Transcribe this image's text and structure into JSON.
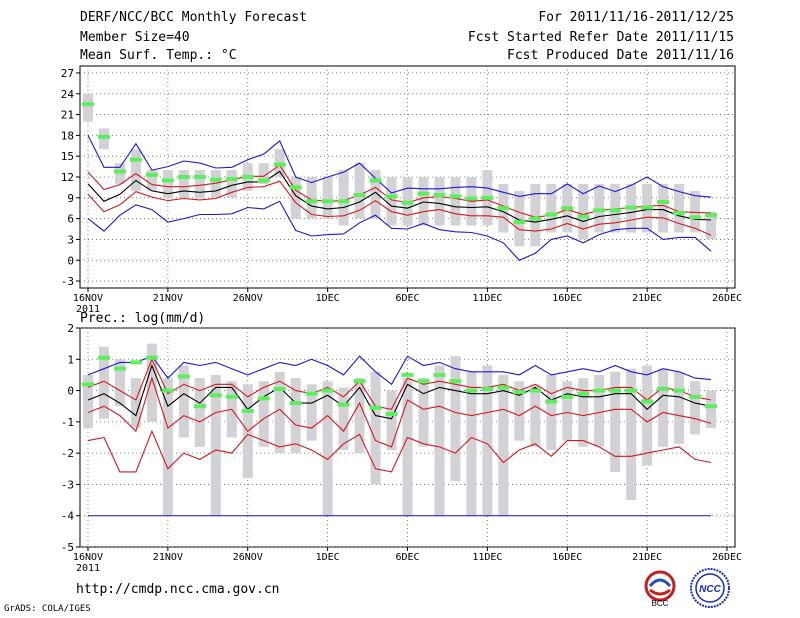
{
  "header": {
    "title": "DERF/NCC/BCC Monthly Forecast",
    "member_size": "Member Size=40",
    "variable": "Mean Surf. Temp.: °C",
    "forecast_period": "For 2011/11/16-2011/12/25",
    "started_refer": "Fcst Started Refer Date 2011/11/15",
    "produced": "Fcst Produced Date 2011/11/16"
  },
  "footer": {
    "url": "http://cmdp.ncc.cma.gov.cn",
    "grads_credit": "GrADS: COLA/IGES",
    "logo_left_text": "BCC",
    "logo_right_text": "NCC"
  },
  "colors": {
    "box": "#d2d2d6",
    "median": "#5cee5c",
    "mean": "#000000",
    "stdev": "#d21a1a",
    "extreme": "#1a1ad2",
    "grid": "#666666"
  },
  "chart_data": [
    {
      "type": "box-ensemble",
      "title": "Mean Surf. Temp.: °C",
      "x_labels": [
        "16NOV",
        "21NOV",
        "26NOV",
        "1DEC",
        "6DEC",
        "11DEC",
        "16DEC",
        "21DEC",
        "26DEC"
      ],
      "x_year_label": "2011",
      "ylim": [
        -4,
        28
      ],
      "yticks": [
        -3,
        0,
        3,
        6,
        9,
        12,
        15,
        18,
        21,
        24,
        27
      ],
      "days": [
        1,
        2,
        3,
        4,
        5,
        6,
        7,
        8,
        9,
        10,
        11,
        12,
        13,
        14,
        15,
        16,
        17,
        18,
        19,
        20,
        21,
        22,
        23,
        24,
        25,
        26,
        27,
        28,
        29,
        30,
        31,
        32,
        33,
        34,
        35,
        36,
        37,
        38,
        39,
        40
      ],
      "box_low": [
        20,
        16,
        11,
        10,
        10,
        9,
        9,
        9,
        9,
        9,
        10,
        11,
        12,
        6,
        6,
        6,
        5,
        6,
        6,
        5,
        5,
        5,
        5,
        5,
        5,
        5,
        4,
        2,
        2,
        4,
        4,
        3,
        4,
        4,
        4,
        4,
        4,
        4,
        4,
        3
      ],
      "box_high": [
        24,
        19,
        14,
        16,
        13,
        13,
        13,
        13,
        13,
        13,
        14,
        14,
        16,
        12,
        12,
        12,
        13,
        14,
        13,
        12,
        12,
        12,
        12,
        12,
        12,
        13,
        11,
        10,
        11,
        11,
        11,
        11,
        11,
        11,
        11,
        11,
        11,
        11,
        10,
        7
      ],
      "median": [
        22.5,
        17.8,
        12.8,
        14.5,
        12.3,
        11.5,
        12,
        12,
        11.6,
        11.7,
        12,
        11.5,
        13.8,
        10.5,
        8.5,
        8.5,
        8.5,
        9.4,
        11.5,
        9.2,
        8.3,
        9.6,
        9.4,
        9.2,
        8.9,
        9,
        7.5,
        5.5,
        6,
        6.6,
        7.5,
        6.3,
        7.2,
        7.2,
        7.6,
        7.6,
        8.4,
        6.8,
        6.2,
        6.5
      ],
      "mean": [
        11,
        8.5,
        9.5,
        11.5,
        10,
        9.6,
        10,
        9.8,
        10,
        10.8,
        11.3,
        11.3,
        12.8,
        9.3,
        7.8,
        7.4,
        7.6,
        8.4,
        9.8,
        7.8,
        7.5,
        8.4,
        8.2,
        7.7,
        7.6,
        7.7,
        7,
        5.8,
        5.5,
        5.9,
        6.4,
        5.6,
        6.3,
        6.6,
        6.9,
        7.3,
        7.3,
        6.4,
        5.9,
        5.8
      ],
      "mean_plus_sd": [
        12.7,
        10.2,
        10.9,
        12.5,
        10.9,
        10.6,
        10.6,
        10.8,
        11.1,
        11.6,
        12.1,
        12.1,
        13.7,
        10.1,
        8.7,
        8.5,
        8.6,
        9.4,
        10.5,
        8.7,
        8.3,
        9,
        9.2,
        8.9,
        8.5,
        8.7,
        7.8,
        6.9,
        6.2,
        6.5,
        7.3,
        6.6,
        7.2,
        7.4,
        7.6,
        7.8,
        7.9,
        7,
        6.9,
        6.8
      ],
      "mean_minus_sd": [
        9.5,
        7,
        8,
        9.9,
        9.1,
        8.6,
        8.9,
        8.7,
        8.9,
        9.8,
        10.5,
        10.6,
        11.4,
        8.3,
        6.6,
        6.3,
        6.4,
        7.2,
        8.6,
        7,
        6.5,
        7,
        7.3,
        6.7,
        6.4,
        6.4,
        6.2,
        4.4,
        4.2,
        4.5,
        5.3,
        4.5,
        5.2,
        5.4,
        5.8,
        6.2,
        6.1,
        5.3,
        4.6,
        3.6
      ],
      "max": [
        18,
        13.4,
        13.4,
        16.8,
        13,
        13.5,
        14.3,
        14,
        13.3,
        13.4,
        14.5,
        15.3,
        17.2,
        12,
        11.2,
        12,
        12.7,
        14,
        11.8,
        9.7,
        10.4,
        10.3,
        10.3,
        10.5,
        10.6,
        10.4,
        9.8,
        9.2,
        9.6,
        9.6,
        11,
        9.6,
        10.7,
        9.9,
        10.8,
        12,
        10.6,
        9.9,
        9.3,
        9.1
      ],
      "min": [
        6,
        4.2,
        6.5,
        8,
        7.3,
        5.5,
        6,
        6.6,
        6.6,
        6.7,
        7.6,
        7.4,
        8.5,
        4.3,
        3.5,
        3.7,
        3.8,
        5.4,
        6.5,
        4.6,
        4.5,
        5.3,
        4.4,
        4.1,
        4,
        3.5,
        2.5,
        0,
        1,
        3,
        3.5,
        2.5,
        3.7,
        4.4,
        4.6,
        4.6,
        3,
        3.3,
        3.3,
        1.3
      ]
    },
    {
      "type": "box-ensemble",
      "title": "Prec.: log(mm/d)",
      "x_labels": [
        "16NOV",
        "21NOV",
        "26NOV",
        "1DEC",
        "6DEC",
        "11DEC",
        "16DEC",
        "21DEC",
        "26DEC"
      ],
      "x_year_label": "2011",
      "ylim": [
        -5,
        2
      ],
      "yticks": [
        -5,
        -4,
        -3,
        -2,
        -1,
        0,
        1,
        2
      ],
      "box_low": [
        -1.2,
        -0.9,
        -0.5,
        -1.2,
        -1.0,
        -4,
        -1.5,
        -1.8,
        -4,
        -1.5,
        -2.8,
        -1.8,
        -2,
        -2,
        -1.6,
        -4,
        -1.9,
        -2,
        -3,
        -1.9,
        -4,
        -1.8,
        -4,
        -2.9,
        -4,
        -4,
        -4,
        -1.6,
        -1.8,
        -1.9,
        -1.6,
        -1.8,
        -1.8,
        -2.6,
        -3.5,
        -2.4,
        -1.8,
        -1.7,
        -1.4,
        -1.2
      ],
      "box_high": [
        0.5,
        1.4,
        1,
        0.4,
        1.5,
        0.4,
        0.8,
        0.4,
        0.5,
        0.3,
        0.2,
        0.3,
        0.6,
        0.4,
        0.2,
        0.3,
        0.1,
        0.4,
        0.6,
        0,
        0.4,
        0.4,
        0.8,
        1.1,
        0.6,
        0.8,
        0.5,
        0.3,
        0.2,
        0.5,
        0.3,
        0.4,
        0.5,
        0.6,
        0.7,
        0.8,
        0.7,
        0.6,
        0.3,
        0
      ],
      "median": [
        0.2,
        1.05,
        0.7,
        0.9,
        1.05,
        0,
        0.45,
        -0.5,
        -0.15,
        -0.2,
        -0.65,
        -0.25,
        0.05,
        -0.4,
        -0.1,
        0,
        -0.45,
        0.3,
        -0.55,
        -0.75,
        0.5,
        0.3,
        0.5,
        0.3,
        0,
        0.05,
        0.1,
        -0.05,
        0,
        -0.35,
        -0.2,
        -0.1,
        0,
        0,
        0,
        -0.35,
        0.05,
        0,
        -0.2,
        -0.5
      ],
      "mean": [
        -0.3,
        -0.1,
        -0.4,
        -0.8,
        0.8,
        -0.5,
        -0.1,
        -0.4,
        0.1,
        0.1,
        -0.6,
        -0.2,
        0.1,
        -0.4,
        -0.4,
        -0.15,
        -0.5,
        0.1,
        -0.8,
        -0.9,
        0.2,
        -0.1,
        0.1,
        0,
        -0.1,
        -0.1,
        0,
        -0.15,
        0.1,
        -0.3,
        -0.1,
        -0.2,
        -0.2,
        -0.1,
        -0.1,
        -0.6,
        -0.15,
        -0.2,
        -0.4,
        -0.5
      ],
      "mean_plus_sd": [
        0.1,
        0.3,
        0,
        -0.3,
        1,
        -0.1,
        0.2,
        0,
        0.2,
        0.2,
        -0.2,
        0.1,
        0.3,
        0,
        -0.1,
        0.1,
        -0.2,
        0.3,
        -0.5,
        -0.6,
        0.4,
        0.2,
        0.3,
        0.2,
        0.1,
        0.1,
        0.2,
        0,
        0.2,
        -0.1,
        0.1,
        0,
        0,
        0.1,
        0.1,
        -0.3,
        0.1,
        0,
        -0.2,
        -0.3
      ],
      "mean_minus_sd": [
        -0.7,
        -0.5,
        -0.8,
        -1.3,
        0.4,
        -1.2,
        -0.8,
        -1.0,
        -0.7,
        -0.6,
        -1.3,
        -0.9,
        -0.6,
        -1.1,
        -1.2,
        -0.8,
        -1.3,
        -0.4,
        -1.6,
        -1.8,
        -0.3,
        -0.6,
        -0.5,
        -0.7,
        -0.8,
        -0.7,
        -0.6,
        -0.8,
        -0.5,
        -0.8,
        -0.7,
        -0.8,
        -0.7,
        -0.6,
        -0.6,
        -1.0,
        -0.7,
        -0.8,
        -0.9,
        -1.05
      ],
      "min": [
        -1.6,
        -1.5,
        -2.6,
        -2.6,
        -1.3,
        -2.5,
        -2,
        -2.2,
        -1.9,
        -2,
        -1.4,
        -1.6,
        -1.8,
        -1.7,
        -1.9,
        -2.2,
        -1.7,
        -1.4,
        -2.5,
        -2.6,
        -1.5,
        -1.7,
        -1.8,
        -2.0,
        -1.5,
        -1.7,
        -2.3,
        -1.9,
        -1.7,
        -2.1,
        -1.6,
        -1.6,
        -1.8,
        -2.1,
        -2.1,
        -2.0,
        -1.9,
        -1.8,
        -2.2,
        -2.3
      ],
      "max": [
        0.5,
        0.7,
        0.9,
        0.9,
        1.1,
        0.4,
        0.9,
        0.8,
        0.9,
        0.7,
        0.5,
        0.7,
        0.9,
        0.8,
        1,
        0.8,
        0.5,
        1.1,
        0.6,
        0.2,
        1.1,
        0.8,
        0.9,
        0.7,
        0.6,
        0.6,
        0.6,
        0.5,
        0.8,
        0.5,
        0.6,
        0.7,
        0.6,
        0.8,
        0.6,
        0.5,
        0.7,
        0.6,
        0.4,
        0.35
      ],
      "lower_limit": -4
    }
  ]
}
